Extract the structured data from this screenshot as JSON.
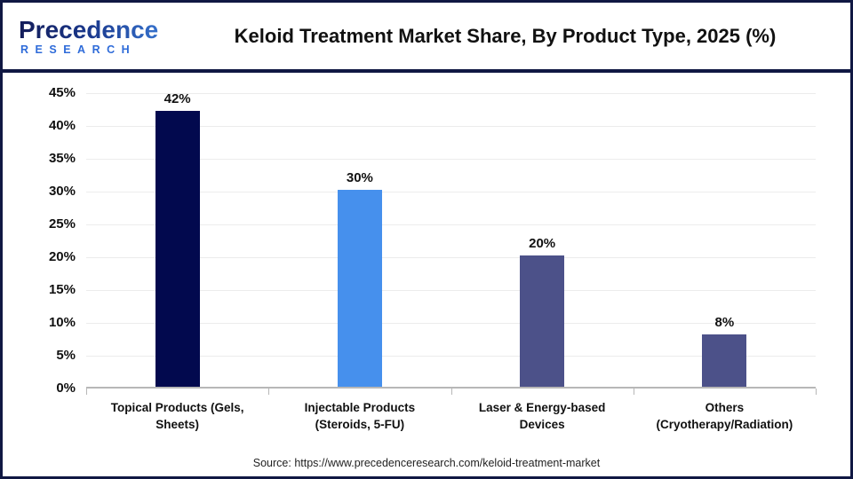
{
  "colors": {
    "border_navy": "#101843",
    "axis_gray": "#b7b7b7",
    "gridline_gray": "#ececec",
    "logo_navy": "#131c59",
    "logo_blue": "#2e6bd9",
    "text_black": "#111111"
  },
  "header": {
    "logo_line1": "Precedence",
    "logo_line2": "RESEARCH",
    "title": "Keloid Treatment Market Share, By Product Type, 2025 (%)"
  },
  "chart_data": {
    "type": "bar",
    "title": "Keloid Treatment Market Share, By Product Type, 2025 (%)",
    "categories": [
      "Topical Products (Gels, Sheets)",
      "Injectable Products (Steroids, 5-FU)",
      "Laser & Energy-based Devices",
      "Others (Cryotherapy/Radiation)"
    ],
    "values": [
      42,
      30,
      20,
      8
    ],
    "value_labels": [
      "42%",
      "30%",
      "20%",
      "8%"
    ],
    "bar_colors": [
      "#02094e",
      "#4690ed",
      "#4c5189",
      "#4c5189"
    ],
    "ylabel": "",
    "xlabel": "",
    "ylim": [
      0,
      45
    ],
    "ytick_step": 5,
    "ytick_labels": [
      "45%",
      "40%",
      "35%",
      "30%",
      "25%",
      "20%",
      "15%",
      "10%",
      "5%",
      "0%"
    ],
    "grid": "horizontal",
    "legend": "none"
  },
  "footer": {
    "source": "Source: https://www.precedenceresearch.com/keloid-treatment-market"
  }
}
